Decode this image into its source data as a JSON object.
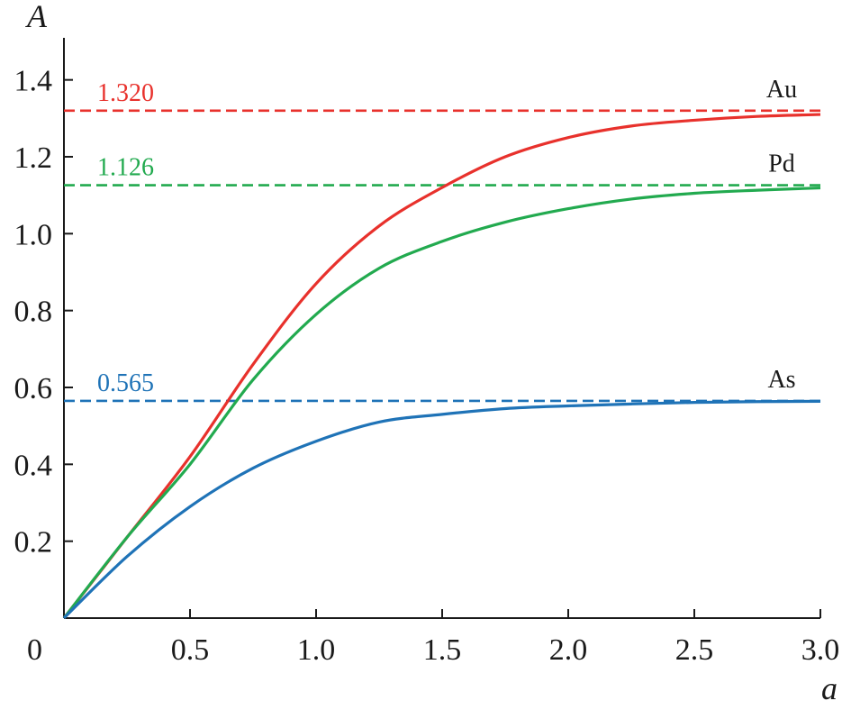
{
  "chart_data": {
    "type": "line",
    "title": "",
    "xlabel": "a",
    "ylabel": "A",
    "xlim": [
      0,
      3.0
    ],
    "ylim": [
      0,
      1.5
    ],
    "origin_label": "0",
    "x_ticks": [
      {
        "value": 0.5,
        "label": "0.5"
      },
      {
        "value": 1.0,
        "label": "1.0"
      },
      {
        "value": 1.5,
        "label": "1.5"
      },
      {
        "value": 2.0,
        "label": "2.0"
      },
      {
        "value": 2.5,
        "label": "2.5"
      },
      {
        "value": 3.0,
        "label": "3.0"
      }
    ],
    "y_ticks": [
      {
        "value": 0.2,
        "label": "0.2"
      },
      {
        "value": 0.4,
        "label": "0.4"
      },
      {
        "value": 0.6,
        "label": "0.6"
      },
      {
        "value": 0.8,
        "label": "0.8"
      },
      {
        "value": 1.0,
        "label": "1.0"
      },
      {
        "value": 1.2,
        "label": "1.2"
      },
      {
        "value": 1.4,
        "label": "1.4"
      }
    ],
    "x": [
      0,
      0.25,
      0.5,
      0.75,
      1.0,
      1.25,
      1.5,
      1.75,
      2.0,
      2.25,
      2.5,
      2.75,
      3.0
    ],
    "series": [
      {
        "name": "Au",
        "color": "#e8312c",
        "asymptote": 1.32,
        "asymptote_label": "1.320",
        "values": [
          0,
          0.21,
          0.42,
          0.66,
          0.87,
          1.02,
          1.12,
          1.2,
          1.25,
          1.28,
          1.295,
          1.305,
          1.31
        ]
      },
      {
        "name": "Pd",
        "color": "#22aa4f",
        "asymptote": 1.126,
        "asymptote_label": "1.126",
        "values": [
          0,
          0.21,
          0.4,
          0.62,
          0.79,
          0.91,
          0.98,
          1.03,
          1.065,
          1.09,
          1.105,
          1.113,
          1.119
        ]
      },
      {
        "name": "As",
        "color": "#1f73b7",
        "asymptote": 0.565,
        "asymptote_label": "0.565",
        "values": [
          0,
          0.16,
          0.29,
          0.39,
          0.46,
          0.51,
          0.53,
          0.545,
          0.552,
          0.557,
          0.561,
          0.563,
          0.564
        ]
      }
    ]
  }
}
